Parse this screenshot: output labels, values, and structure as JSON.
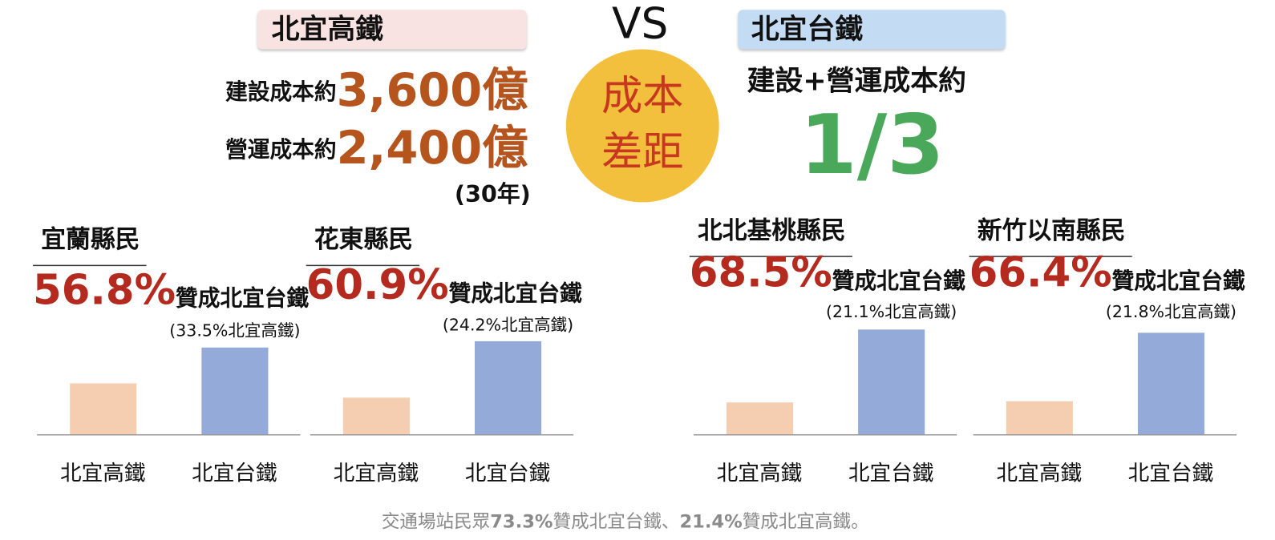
{
  "header": {
    "left_label": "北宜高鐵",
    "build_cost_label": "建設成本約",
    "build_cost": "3,600億",
    "operation_cost_label": "營運成本約",
    "operation_cost": "2,400億",
    "period": "(30年)",
    "vs": "VS",
    "center_lines": [
      "成本",
      "差距"
    ],
    "right_label": "北宜台鐵",
    "right_cost_label": "建設+營運成本約",
    "right_ratio": "1/3"
  },
  "chart_data": [
    {
      "type": "bar",
      "title": "宜蘭縣民",
      "headline_suffix": "贊成北宜台鐵",
      "categories": [
        "北宜高鐵",
        "北宜台鐵"
      ],
      "values": [
        33.5,
        56.8
      ],
      "value_labels": [
        "(33.5%北宜高鐵)",
        "56.8%"
      ],
      "colors": [
        "#f5cdb0",
        "#94aad9"
      ],
      "ylim": [
        0,
        70
      ]
    },
    {
      "type": "bar",
      "title": "花東縣民",
      "headline_suffix": "贊成北宜台鐵",
      "categories": [
        "北宜高鐵",
        "北宜台鐵"
      ],
      "values": [
        24.2,
        60.9
      ],
      "value_labels": [
        "(24.2%北宜高鐵)",
        "60.9%"
      ],
      "colors": [
        "#f5cdb0",
        "#94aad9"
      ],
      "ylim": [
        0,
        70
      ]
    },
    {
      "type": "bar",
      "title": "北北基桃縣民",
      "headline_suffix": "贊成北宜台鐵",
      "categories": [
        "北宜高鐵",
        "北宜台鐵"
      ],
      "values": [
        21.1,
        68.5
      ],
      "value_labels": [
        "(21.1%北宜高鐵)",
        "68.5%"
      ],
      "colors": [
        "#f5cdb0",
        "#94aad9"
      ],
      "ylim": [
        0,
        70
      ]
    },
    {
      "type": "bar",
      "title": "新竹以南縣民",
      "headline_suffix": "贊成北宜台鐵",
      "categories": [
        "北宜高鐵",
        "北宜台鐵"
      ],
      "values": [
        21.8,
        66.4
      ],
      "value_labels": [
        "(21.8%北宜高鐵)",
        "66.4%"
      ],
      "colors": [
        "#f5cdb0",
        "#94aad9"
      ],
      "ylim": [
        0,
        70
      ]
    }
  ],
  "footer": {
    "parts": [
      "交通場站民眾",
      "73.3%",
      "贊成北宜台鐵、",
      "21.4%",
      "贊成北宜高鐵。"
    ]
  }
}
